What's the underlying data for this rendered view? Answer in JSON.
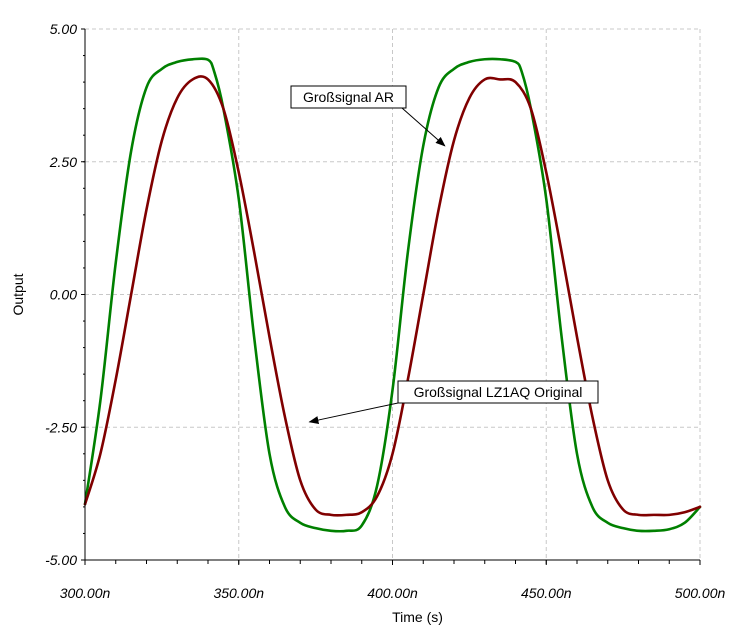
{
  "chart_data": {
    "type": "line",
    "xlabel": "Time (s)",
    "ylabel": "Output",
    "xlim": [
      300,
      500
    ],
    "ylim": [
      -5,
      5
    ],
    "x_unit": "ns",
    "x_tick_values": [
      300,
      350,
      400,
      450,
      500
    ],
    "x_tick_labels": [
      "300.00n",
      "350.00n",
      "400.00n",
      "450.00n",
      "500.00n"
    ],
    "y_tick_values": [
      5,
      2.5,
      0,
      -2.5,
      -5
    ],
    "y_tick_labels": [
      "5.00",
      "2.50",
      "0.00",
      "-2.50",
      "-5.00"
    ],
    "grid": true,
    "series": [
      {
        "name": "Großsignal AR",
        "color": "#008000",
        "x": [
          300,
          305,
          310,
          315,
          320,
          325,
          330,
          335,
          340,
          342,
          345,
          350,
          355,
          360,
          365,
          370,
          375,
          380,
          385,
          390,
          395,
          400,
          405,
          410,
          415,
          420,
          425,
          430,
          435,
          440,
          442,
          445,
          450,
          455,
          460,
          465,
          470,
          475,
          480,
          485,
          490,
          495,
          500
        ],
        "y": [
          -3.95,
          -2.0,
          0.6,
          2.7,
          3.9,
          4.25,
          4.38,
          4.43,
          4.42,
          4.2,
          3.5,
          1.8,
          -0.8,
          -3.0,
          -4.0,
          -4.3,
          -4.4,
          -4.45,
          -4.45,
          -4.35,
          -3.6,
          -1.8,
          0.8,
          2.8,
          3.9,
          4.25,
          4.38,
          4.43,
          4.43,
          4.38,
          4.2,
          3.5,
          1.8,
          -0.8,
          -3.0,
          -4.0,
          -4.3,
          -4.4,
          -4.45,
          -4.45,
          -4.42,
          -4.3,
          -4.0
        ]
      },
      {
        "name": "Großsignal LZ1AQ Original",
        "color": "#800000",
        "x": [
          300,
          305,
          310,
          315,
          320,
          325,
          330,
          335,
          340,
          345,
          350,
          355,
          360,
          365,
          370,
          375,
          380,
          385,
          390,
          395,
          400,
          405,
          410,
          415,
          420,
          425,
          430,
          435,
          440,
          445,
          450,
          455,
          460,
          465,
          470,
          475,
          480,
          485,
          490,
          495,
          500
        ],
        "y": [
          -3.95,
          -3.0,
          -1.6,
          0.0,
          1.6,
          2.9,
          3.7,
          4.05,
          4.05,
          3.5,
          2.3,
          0.8,
          -0.8,
          -2.3,
          -3.5,
          -4.05,
          -4.15,
          -4.15,
          -4.1,
          -3.8,
          -3.0,
          -1.6,
          0.0,
          1.6,
          2.9,
          3.7,
          4.05,
          4.05,
          4.0,
          3.5,
          2.3,
          0.8,
          -0.8,
          -2.3,
          -3.5,
          -4.05,
          -4.15,
          -4.15,
          -4.15,
          -4.1,
          -4.0
        ]
      }
    ],
    "annotations": [
      {
        "text": "Großsignal AR",
        "series": 0,
        "point_x": 417,
        "point_y": 2.8
      },
      {
        "text": "Großsignal LZ1AQ Original",
        "series": 1,
        "point_x": 373,
        "point_y": -2.4
      }
    ]
  }
}
